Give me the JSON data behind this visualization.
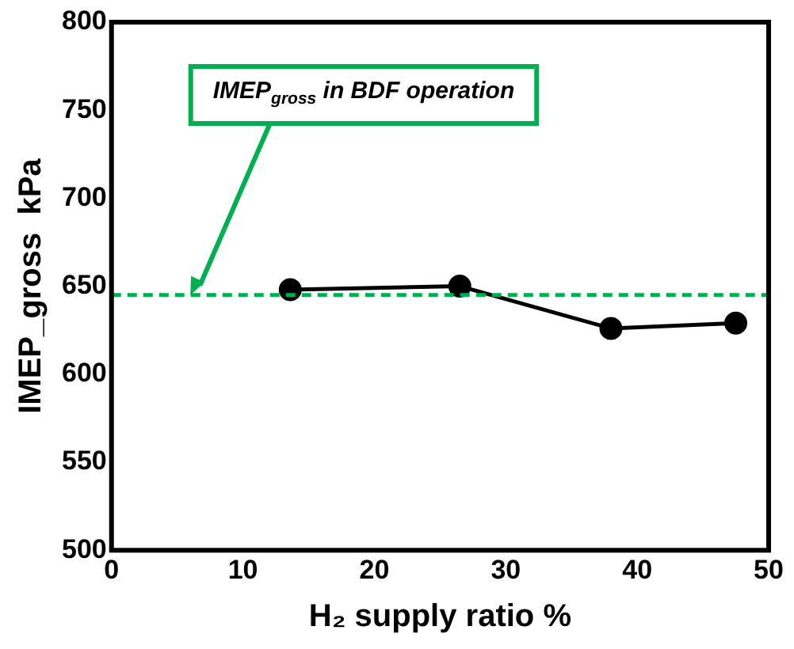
{
  "chart_data": {
    "type": "line",
    "xlabel": "H₂ supply ratio %",
    "ylabel": "IMEP_gross  kPa",
    "x": [
      13.6,
      26.5,
      38,
      47.5
    ],
    "series": [
      {
        "color": "#000000",
        "values": [
          648,
          650,
          626,
          629
        ]
      }
    ],
    "xlim": [
      0,
      50
    ],
    "xticks": [
      0,
      10,
      20,
      30,
      40,
      50
    ],
    "ylim": [
      500,
      800
    ],
    "yticks": [
      500,
      550,
      600,
      650,
      700,
      750,
      800
    ],
    "grid": false,
    "legend": false,
    "marker": "circle",
    "line_style": "solid",
    "ref_lines": [
      {
        "axis": "y",
        "value": 645,
        "color": "#00b050",
        "line_style": "dashed"
      }
    ],
    "annotations": [
      {
        "text": "IMEP$_{gross}$ in BDF operation",
        "x": 6,
        "y": 645
      }
    ]
  }
}
